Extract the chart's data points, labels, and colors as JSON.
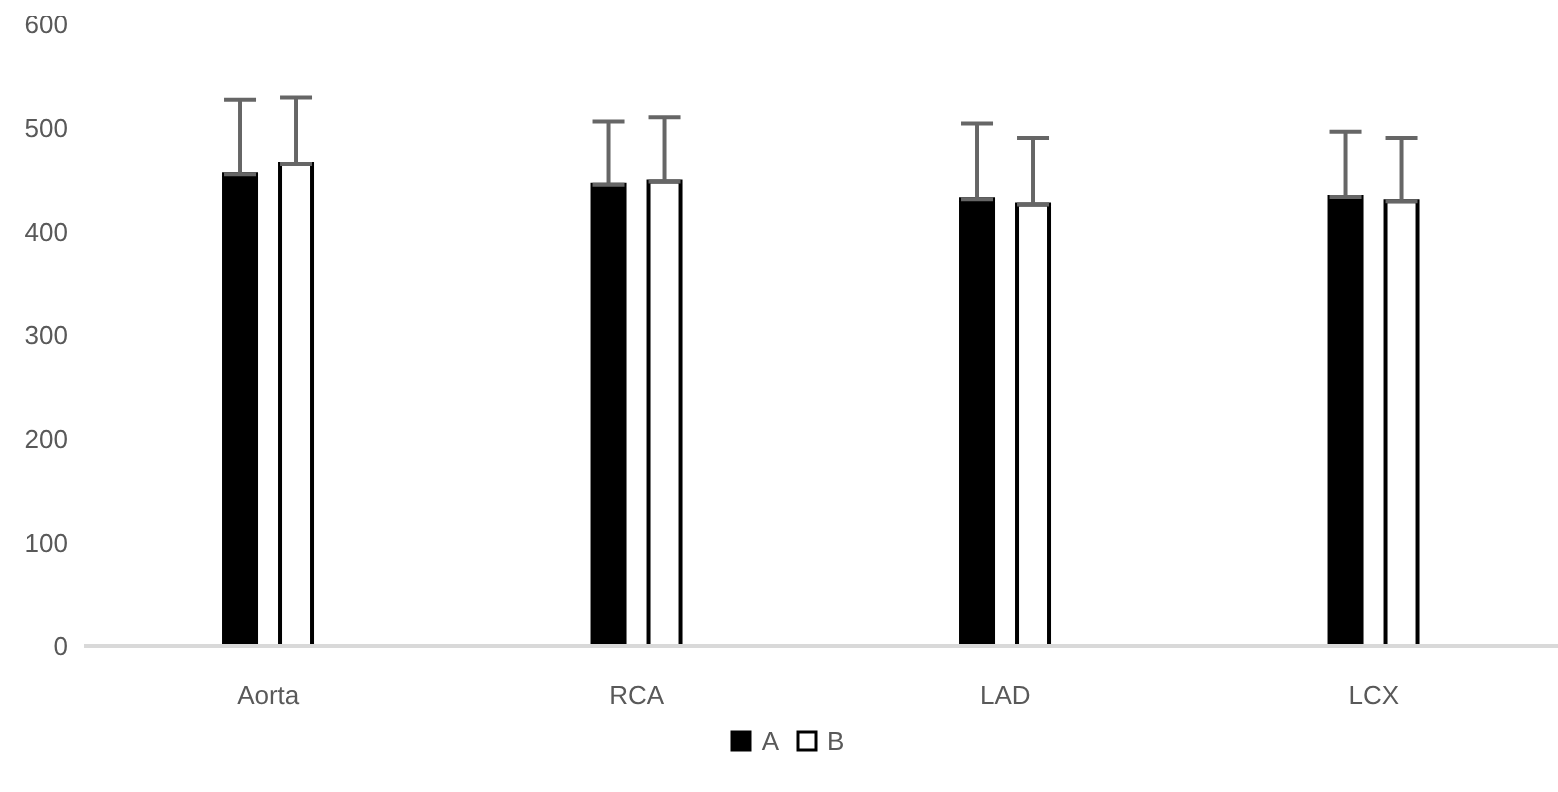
{
  "chart_data": {
    "type": "bar",
    "categories": [
      "Aorta",
      "RCA",
      "LAD",
      "LCX"
    ],
    "series": [
      {
        "name": "A",
        "color": "#000000",
        "values": [
          455,
          445,
          431,
          433
        ],
        "errors": [
          [
            455,
            527
          ],
          [
            445,
            506
          ],
          [
            431,
            504
          ],
          [
            433,
            496
          ]
        ]
      },
      {
        "name": "B",
        "color": "#ffffff",
        "values": [
          465,
          448,
          426,
          429
        ],
        "errors": [
          [
            465,
            529
          ],
          [
            448,
            510
          ],
          [
            426,
            490
          ],
          [
            429,
            490
          ]
        ]
      }
    ],
    "ylim": [
      0,
      600
    ],
    "yticks": [
      0,
      100,
      200,
      300,
      400,
      500,
      600
    ],
    "grid": false,
    "legend": "bottom"
  }
}
